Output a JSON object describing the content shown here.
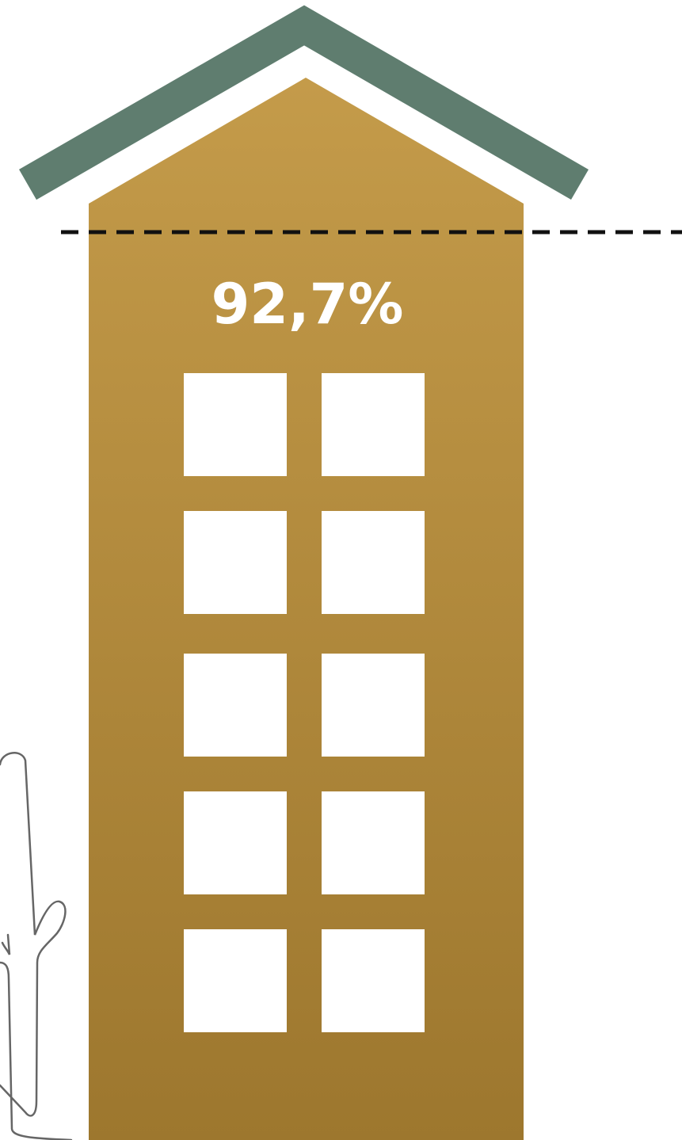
{
  "building": {
    "label": "92,7%"
  }
}
